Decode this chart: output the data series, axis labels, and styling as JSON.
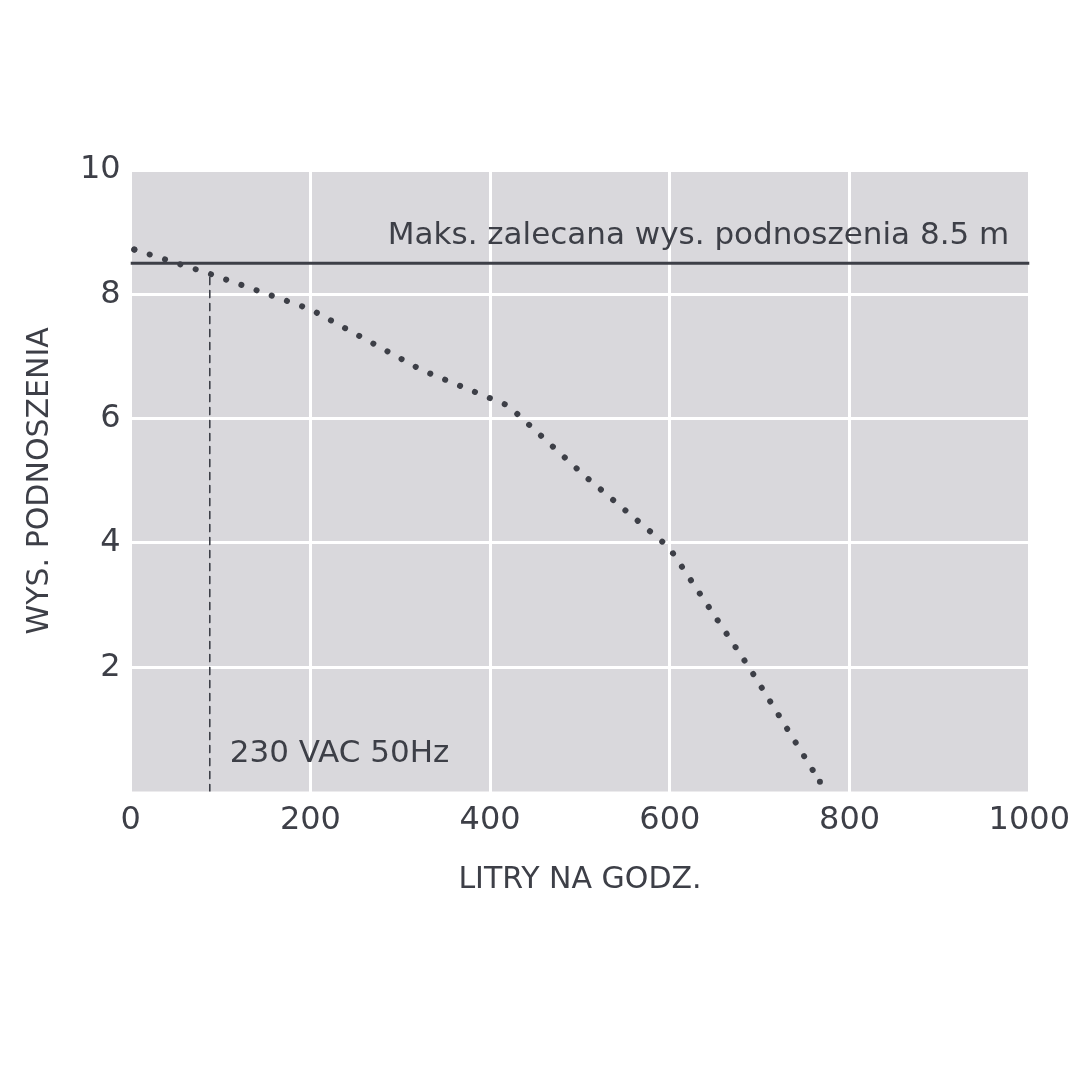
{
  "chart_data": {
    "type": "line",
    "xlabel": "LITRY NA GODZ.",
    "ylabel": "WYS. PODNOSZENIA",
    "xlim": [
      0,
      1000
    ],
    "xticks": [
      0,
      200,
      400,
      600,
      800,
      1000
    ],
    "ylim": [
      0,
      10
    ],
    "yticks": [
      2,
      4,
      6,
      8,
      10
    ],
    "grid": true,
    "legend": false,
    "marker": "none",
    "series": [
      {
        "color": "#3d3f47",
        "line_style": "dotted",
        "x": [
          4,
          88,
          200,
          324,
          420,
          506,
          599,
          689,
          767
        ],
        "values": [
          8.72,
          8.33,
          7.76,
          6.78,
          6.21,
          5.07,
          3.93,
          1.98,
          0.16
        ]
      },
      {
        "color": "#3d3f47",
        "line_style": "dashed",
        "x": [
          88,
          88
        ],
        "values": [
          0,
          8.33
        ]
      }
    ],
    "ref_lines": [
      {
        "axis": "y",
        "value": 8.5,
        "label": "Maks. zalecana wys. podnoszenia 8.5 m",
        "color": "#3d3f47"
      }
    ],
    "annotations": [
      {
        "text": "230 VAC 50Hz",
        "x": 88,
        "y": 0.6
      }
    ]
  }
}
